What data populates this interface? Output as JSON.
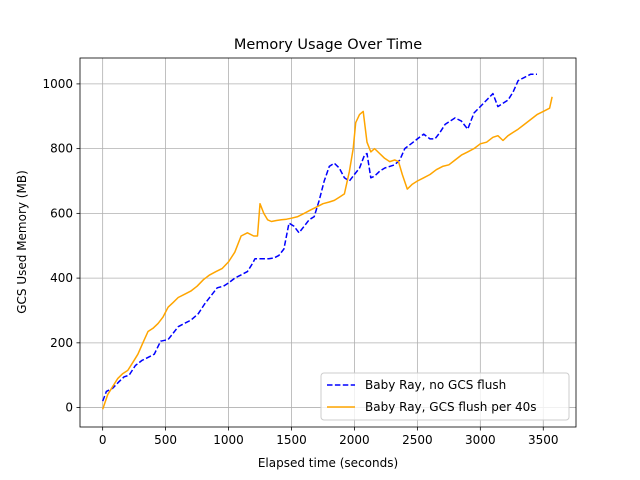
{
  "chart_data": {
    "type": "line",
    "title": "Memory Usage Over Time",
    "xlabel": "Elapsed time (seconds)",
    "ylabel": "GCS Used Memory (MB)",
    "xlim": [
      -180,
      3760
    ],
    "ylim": [
      -60,
      1080
    ],
    "xticks": [
      0,
      500,
      1000,
      1500,
      2000,
      2500,
      3000,
      3500
    ],
    "yticks": [
      0,
      200,
      400,
      600,
      800,
      1000
    ],
    "grid": true,
    "legend_position": "lower-right",
    "series": [
      {
        "name": "Baby Ray, no GCS flush",
        "color": "#0000ff",
        "style": "dashed",
        "x": [
          0,
          30,
          80,
          130,
          170,
          210,
          260,
          310,
          360,
          410,
          460,
          520,
          560,
          600,
          650,
          700,
          760,
          810,
          860,
          910,
          960,
          1000,
          1050,
          1100,
          1150,
          1190,
          1210,
          1240,
          1280,
          1320,
          1360,
          1400,
          1440,
          1480,
          1520,
          1560,
          1600,
          1640,
          1680,
          1720,
          1760,
          1800,
          1840,
          1880,
          1920,
          1960,
          2000,
          2040,
          2080,
          2100,
          2130,
          2160,
          2200,
          2240,
          2280,
          2320,
          2360,
          2400,
          2450,
          2500,
          2550,
          2600,
          2640,
          2680,
          2720,
          2760,
          2800,
          2850,
          2900,
          2950,
          3000,
          3050,
          3100,
          3140,
          3180,
          3220,
          3260,
          3300,
          3350,
          3400,
          3450
        ],
        "y": [
          20,
          50,
          60,
          80,
          95,
          100,
          130,
          145,
          155,
          165,
          205,
          210,
          230,
          250,
          260,
          270,
          290,
          320,
          345,
          370,
          375,
          385,
          400,
          410,
          420,
          445,
          460,
          460,
          460,
          460,
          462,
          470,
          490,
          570,
          560,
          540,
          560,
          580,
          590,
          640,
          700,
          745,
          755,
          740,
          710,
          700,
          720,
          740,
          780,
          785,
          710,
          715,
          730,
          740,
          745,
          750,
          765,
          800,
          815,
          830,
          845,
          830,
          830,
          850,
          875,
          885,
          895,
          885,
          860,
          910,
          930,
          950,
          970,
          930,
          940,
          950,
          975,
          1010,
          1020,
          1030,
          1030
        ]
      },
      {
        "name": "Baby Ray, GCS flush per 40s",
        "color": "#ffa500",
        "style": "solid",
        "x": [
          0,
          40,
          80,
          120,
          160,
          200,
          240,
          280,
          320,
          360,
          400,
          440,
          480,
          520,
          560,
          600,
          650,
          700,
          750,
          800,
          850,
          900,
          950,
          1000,
          1050,
          1100,
          1150,
          1200,
          1230,
          1250,
          1280,
          1310,
          1340,
          1380,
          1420,
          1460,
          1500,
          1550,
          1600,
          1650,
          1700,
          1750,
          1800,
          1840,
          1880,
          1920,
          1960,
          1990,
          2010,
          2040,
          2070,
          2100,
          2130,
          2160,
          2200,
          2240,
          2280,
          2320,
          2350,
          2380,
          2420,
          2460,
          2500,
          2550,
          2600,
          2650,
          2700,
          2750,
          2800,
          2850,
          2900,
          2950,
          3000,
          3050,
          3100,
          3140,
          3180,
          3220,
          3260,
          3300,
          3350,
          3400,
          3450,
          3500,
          3550,
          3570
        ],
        "y": [
          -5,
          40,
          65,
          90,
          105,
          115,
          140,
          165,
          200,
          235,
          245,
          260,
          280,
          310,
          325,
          340,
          350,
          360,
          375,
          395,
          410,
          420,
          430,
          450,
          480,
          530,
          540,
          530,
          530,
          630,
          600,
          580,
          575,
          578,
          580,
          582,
          585,
          590,
          600,
          610,
          620,
          630,
          635,
          640,
          650,
          660,
          730,
          800,
          880,
          905,
          915,
          820,
          790,
          800,
          785,
          770,
          760,
          765,
          760,
          720,
          675,
          690,
          700,
          710,
          720,
          735,
          745,
          750,
          765,
          780,
          790,
          800,
          815,
          820,
          835,
          840,
          825,
          840,
          850,
          860,
          875,
          890,
          905,
          915,
          925,
          960
        ]
      }
    ]
  }
}
